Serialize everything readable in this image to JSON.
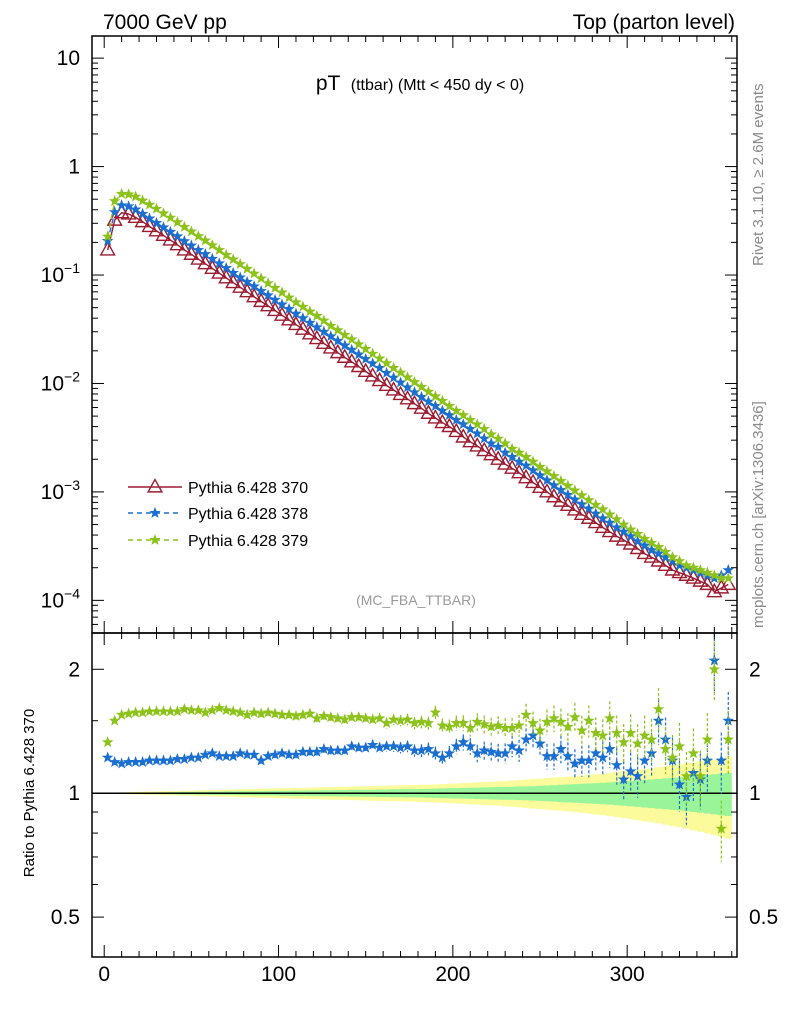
{
  "header": {
    "left": "7000 GeV pp",
    "right": "Top (parton level)"
  },
  "title": {
    "main": "pT",
    "sub": "(ttbar) (Mtt < 450 dy < 0)"
  },
  "side_labels": {
    "upper": "Rivet 3.1.10, ≥ 2.6M events",
    "lower": "mcplots.cern.ch [arXiv:1306.3436]"
  },
  "analysis_tag": "(MC_FBA_TTBAR)",
  "ratio_ylabel": "Ratio to Pythia 6.428 370",
  "colors": {
    "s370": "#9b1c31",
    "s378": "#1b6fd0",
    "s379": "#8cc21a",
    "band_outer": "#fbfb9b",
    "band_inner": "#9af59a"
  },
  "chart_data": [
    {
      "type": "line",
      "panel": "main",
      "yscale": "log",
      "xlim": [
        -7,
        363
      ],
      "ylim": [
        5e-05,
        16
      ],
      "yticks": [
        {
          "value": 10,
          "label": "10"
        },
        {
          "value": 1,
          "label": "1"
        },
        {
          "value": 0.1,
          "label": "10",
          "exp": "−1"
        },
        {
          "value": 0.01,
          "label": "10",
          "exp": "−2"
        },
        {
          "value": 0.001,
          "label": "10",
          "exp": "−3"
        },
        {
          "value": 0.0001,
          "label": "10",
          "exp": "−4"
        }
      ],
      "x": [
        2,
        6,
        10,
        14,
        18,
        22,
        26,
        30,
        34,
        38,
        42,
        46,
        50,
        54,
        58,
        62,
        66,
        70,
        74,
        78,
        82,
        86,
        90,
        94,
        98,
        102,
        106,
        110,
        114,
        118,
        122,
        126,
        130,
        134,
        138,
        142,
        146,
        150,
        154,
        158,
        162,
        166,
        170,
        174,
        178,
        182,
        186,
        190,
        194,
        198,
        202,
        206,
        210,
        214,
        218,
        222,
        226,
        230,
        234,
        238,
        242,
        246,
        250,
        254,
        258,
        262,
        266,
        270,
        274,
        278,
        282,
        286,
        290,
        294,
        298,
        302,
        306,
        310,
        314,
        318,
        322,
        326,
        330,
        334,
        338,
        342,
        346,
        350,
        354,
        358
      ],
      "series": [
        {
          "name": "Pythia 6.428 370",
          "marker": "triangle",
          "line": "solid",
          "color": "#9b1c31",
          "values": [
            0.17,
            0.32,
            0.375,
            0.365,
            0.34,
            0.31,
            0.28,
            0.255,
            0.232,
            0.21,
            0.19,
            0.17,
            0.155,
            0.14,
            0.127,
            0.115,
            0.104,
            0.094,
            0.085,
            0.077,
            0.07,
            0.063,
            0.057,
            0.052,
            0.047,
            0.0425,
            0.0385,
            0.0349,
            0.0316,
            0.0286,
            0.0259,
            0.0234,
            0.0212,
            0.0192,
            0.0174,
            0.0158,
            0.0143,
            0.0129,
            0.0117,
            0.0106,
            0.0096,
            0.0087,
            0.0079,
            0.0072,
            0.0065,
            0.0059,
            0.0053,
            0.0048,
            0.00435,
            0.004,
            0.0036,
            0.0032,
            0.0029,
            0.00265,
            0.0024,
            0.0022,
            0.002,
            0.0018,
            0.00165,
            0.0015,
            0.00135,
            0.00122,
            0.0011,
            0.001,
            0.0009,
            0.00082,
            0.00075,
            0.00068,
            0.00062,
            0.00057,
            0.00052,
            0.00047,
            0.00043,
            0.00039,
            0.00036,
            0.00033,
            0.0003,
            0.00027,
            0.00025,
            0.00023,
            0.00021,
            0.00019,
            0.00018,
            0.00017,
            0.00016,
            0.00015,
            0.00014,
            0.00012,
            0.00013,
            0.00014
          ]
        },
        {
          "name": "Pythia 6.428 378",
          "marker": "star",
          "line": "dashed",
          "color": "#1b6fd0",
          "values": [
            0.206,
            0.38,
            0.44,
            0.43,
            0.402,
            0.367,
            0.332,
            0.302,
            0.275,
            0.25,
            0.227,
            0.205,
            0.187,
            0.17,
            0.156,
            0.141,
            0.128,
            0.116,
            0.1045,
            0.095,
            0.0864,
            0.0787,
            0.0711,
            0.065,
            0.059,
            0.0535,
            0.0485,
            0.044,
            0.04,
            0.0363,
            0.033,
            0.03,
            0.0272,
            0.0247,
            0.0224,
            0.0204,
            0.0185,
            0.0168,
            0.0153,
            0.0139,
            0.0125,
            0.0113,
            0.0102,
            0.0092,
            0.0083,
            0.0075,
            0.0068,
            0.0062,
            0.0056,
            0.0051,
            0.0046,
            0.0042,
            0.0038,
            0.00345,
            0.0031,
            0.0028,
            0.0026,
            0.0023,
            0.0021,
            0.0019,
            0.00175,
            0.00158,
            0.00142,
            0.00128,
            0.00115,
            0.00104,
            0.00094,
            0.00085,
            0.00077,
            0.0007,
            0.00063,
            0.00057,
            0.00052,
            0.00047,
            0.00043,
            0.00039,
            0.00035,
            0.00032,
            0.00029,
            0.00027,
            0.00025,
            0.00023,
            0.00021,
            0.0002,
            0.00019,
            0.00018,
            0.00017,
            0.00016,
            0.00017,
            0.00019
          ]
        },
        {
          "name": "Pythia 6.428 379",
          "marker": "star",
          "line": "dashed",
          "color": "#8cc21a",
          "values": [
            0.226,
            0.48,
            0.56,
            0.555,
            0.528,
            0.486,
            0.445,
            0.408,
            0.37,
            0.338,
            0.307,
            0.277,
            0.252,
            0.228,
            0.208,
            0.188,
            0.17,
            0.153,
            0.139,
            0.126,
            0.114,
            0.103,
            0.093,
            0.084,
            0.076,
            0.069,
            0.062,
            0.056,
            0.051,
            0.046,
            0.042,
            0.038,
            0.034,
            0.031,
            0.028,
            0.0255,
            0.023,
            0.0208,
            0.0188,
            0.017,
            0.0154,
            0.0139,
            0.0126,
            0.0114,
            0.0103,
            0.0093,
            0.0084,
            0.0076,
            0.0069,
            0.0062,
            0.0056,
            0.0051,
            0.0046,
            0.0042,
            0.0038,
            0.0034,
            0.0031,
            0.0028,
            0.0025,
            0.0023,
            0.0021,
            0.0019,
            0.0017,
            0.00155,
            0.0014,
            0.00126,
            0.00114,
            0.00103,
            0.00093,
            0.00084,
            0.00076,
            0.00069,
            0.00062,
            0.00056,
            0.0005,
            0.00045,
            0.00041,
            0.00037,
            0.00034,
            0.00031,
            0.00028,
            0.00025,
            0.00023,
            0.00021,
            0.0002,
            0.00019,
            0.00018,
            0.00017,
            0.00016,
            0.00016
          ]
        }
      ],
      "legend": "left, lower-middle"
    },
    {
      "type": "line",
      "panel": "ratio",
      "yscale": "log",
      "xlim": [
        -7,
        363
      ],
      "ylim": [
        0.4,
        2.45
      ],
      "xticks": [
        0,
        100,
        200,
        300
      ],
      "yticks": [
        {
          "value": 2,
          "label": "2"
        },
        {
          "value": 1,
          "label": "1"
        },
        {
          "value": 0.5,
          "label": "0.5"
        }
      ],
      "ylabel": "Ratio to Pythia 6.428 370",
      "reference": 1,
      "band_outer_halfwidth": [
        0.002,
        0.004,
        0.005,
        0.006,
        0.007,
        0.008,
        0.009,
        0.01,
        0.011,
        0.012,
        0.013,
        0.014,
        0.015,
        0.016,
        0.017,
        0.018,
        0.019,
        0.02,
        0.021,
        0.022,
        0.023,
        0.024,
        0.025,
        0.026,
        0.027,
        0.028,
        0.029,
        0.03,
        0.031,
        0.032,
        0.033,
        0.034,
        0.035,
        0.036,
        0.037,
        0.038,
        0.039,
        0.04,
        0.041,
        0.042,
        0.043,
        0.044,
        0.045,
        0.046,
        0.047,
        0.048,
        0.049,
        0.05,
        0.052,
        0.054,
        0.056,
        0.058,
        0.06,
        0.062,
        0.064,
        0.066,
        0.068,
        0.07,
        0.073,
        0.076,
        0.079,
        0.082,
        0.085,
        0.088,
        0.091,
        0.094,
        0.097,
        0.1,
        0.104,
        0.108,
        0.112,
        0.116,
        0.12,
        0.125,
        0.13,
        0.135,
        0.14,
        0.145,
        0.15,
        0.156,
        0.162,
        0.168,
        0.174,
        0.18,
        0.187,
        0.194,
        0.201,
        0.209,
        0.217,
        0.225
      ],
      "band_inner_halfwidth": [
        0.001,
        0.002,
        0.002,
        0.003,
        0.003,
        0.004,
        0.004,
        0.005,
        0.005,
        0.006,
        0.006,
        0.007,
        0.007,
        0.008,
        0.008,
        0.009,
        0.009,
        0.01,
        0.01,
        0.011,
        0.011,
        0.012,
        0.012,
        0.013,
        0.013,
        0.014,
        0.014,
        0.015,
        0.015,
        0.016,
        0.016,
        0.017,
        0.017,
        0.018,
        0.018,
        0.019,
        0.019,
        0.02,
        0.02,
        0.021,
        0.021,
        0.022,
        0.022,
        0.023,
        0.023,
        0.024,
        0.025,
        0.026,
        0.027,
        0.028,
        0.029,
        0.03,
        0.031,
        0.032,
        0.033,
        0.034,
        0.035,
        0.036,
        0.037,
        0.038,
        0.039,
        0.04,
        0.042,
        0.044,
        0.046,
        0.048,
        0.05,
        0.052,
        0.054,
        0.056,
        0.058,
        0.06,
        0.062,
        0.065,
        0.068,
        0.071,
        0.074,
        0.077,
        0.08,
        0.083,
        0.086,
        0.089,
        0.092,
        0.096,
        0.1,
        0.104,
        0.108,
        0.112,
        0.116,
        0.12
      ],
      "series": [
        {
          "name": "Pythia 6.428 378",
          "color": "#1b6fd0",
          "values": [
            1.22,
            1.19,
            1.18,
            1.19,
            1.19,
            1.19,
            1.2,
            1.2,
            1.2,
            1.2,
            1.21,
            1.21,
            1.22,
            1.22,
            1.24,
            1.25,
            1.23,
            1.23,
            1.23,
            1.25,
            1.24,
            1.24,
            1.2,
            1.23,
            1.24,
            1.25,
            1.24,
            1.24,
            1.26,
            1.26,
            1.26,
            1.28,
            1.27,
            1.27,
            1.27,
            1.3,
            1.29,
            1.29,
            1.31,
            1.29,
            1.3,
            1.3,
            1.29,
            1.3,
            1.27,
            1.27,
            1.28,
            1.25,
            1.22,
            1.25,
            1.3,
            1.33,
            1.3,
            1.25,
            1.27,
            1.26,
            1.25,
            1.25,
            1.3,
            1.27,
            1.35,
            1.38,
            1.32,
            1.23,
            1.23,
            1.28,
            1.23,
            1.18,
            1.2,
            1.2,
            1.25,
            1.22,
            1.28,
            1.17,
            1.08,
            1.13,
            1.1,
            1.2,
            1.25,
            1.5,
            1.35,
            1.2,
            1.05,
            0.98,
            1.12,
            1.08,
            1.2,
            2.1,
            1.2,
            1.5
          ]
        },
        {
          "name": "Pythia 6.428 379",
          "color": "#8cc21a",
          "values": [
            1.33,
            1.5,
            1.55,
            1.56,
            1.57,
            1.57,
            1.58,
            1.58,
            1.58,
            1.58,
            1.58,
            1.6,
            1.59,
            1.59,
            1.57,
            1.59,
            1.61,
            1.59,
            1.58,
            1.57,
            1.55,
            1.57,
            1.56,
            1.57,
            1.56,
            1.55,
            1.55,
            1.54,
            1.55,
            1.56,
            1.52,
            1.54,
            1.53,
            1.52,
            1.51,
            1.53,
            1.53,
            1.52,
            1.51,
            1.52,
            1.48,
            1.51,
            1.5,
            1.51,
            1.48,
            1.49,
            1.48,
            1.57,
            1.46,
            1.45,
            1.48,
            1.48,
            1.44,
            1.49,
            1.47,
            1.45,
            1.46,
            1.44,
            1.44,
            1.46,
            1.55,
            1.48,
            1.42,
            1.49,
            1.52,
            1.49,
            1.45,
            1.53,
            1.42,
            1.5,
            1.4,
            1.38,
            1.52,
            1.4,
            1.33,
            1.4,
            1.32,
            1.38,
            1.35,
            1.6,
            1.28,
            1.22,
            1.3,
            1.1,
            1.25,
            1.1,
            1.35,
            2.0,
            0.82,
            1.35
          ]
        }
      ]
    }
  ]
}
